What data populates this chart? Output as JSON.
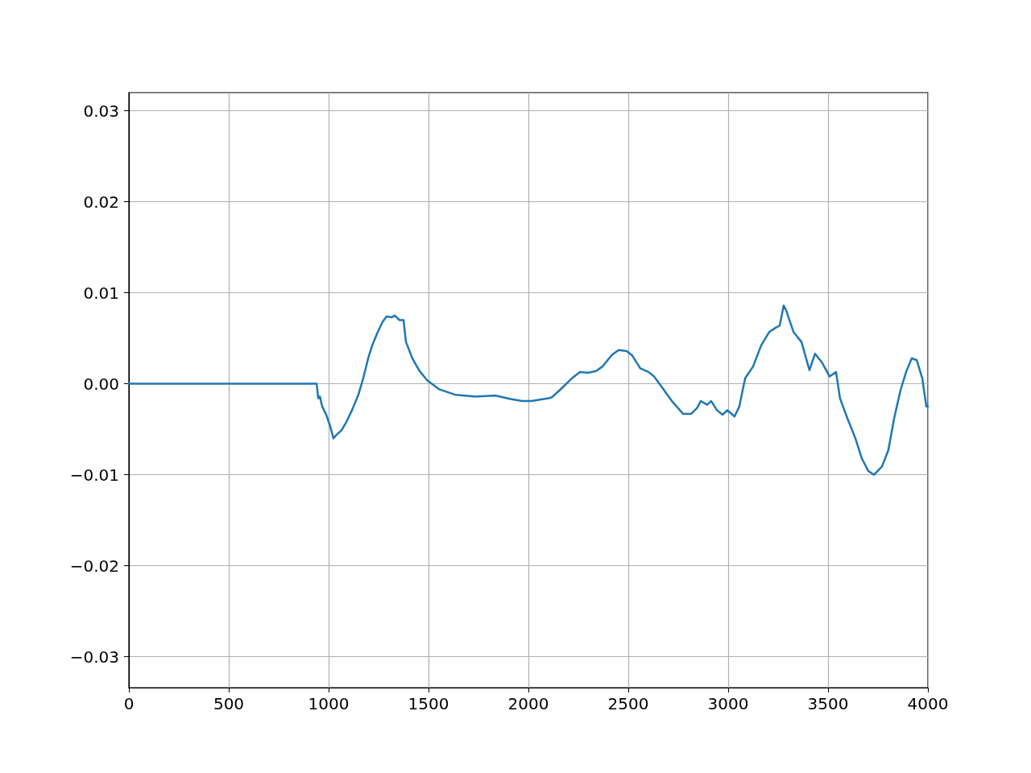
{
  "chart_data": {
    "type": "line",
    "grid": true,
    "marker": "none",
    "line_style": "solid",
    "xlim": [
      0,
      4000
    ],
    "xticks": [
      0,
      500,
      1000,
      1500,
      2000,
      2500,
      3000,
      3500,
      4000
    ],
    "ylim": [
      -0.0334,
      0.032
    ],
    "yticks": [
      {
        "value": -0.03,
        "label": "−0.03"
      },
      {
        "value": -0.02,
        "label": "−0.02"
      },
      {
        "value": -0.01,
        "label": "−0.01"
      },
      {
        "value": 0,
        "label": "0.00"
      },
      {
        "value": 0.01,
        "label": "0.01"
      },
      {
        "value": 0.02,
        "label": "0.02"
      },
      {
        "value": 0.03,
        "label": "0.03"
      }
    ],
    "x": [
      0,
      940,
      948,
      956,
      968,
      988,
      1008,
      1024,
      1040,
      1065,
      1089,
      1117,
      1149,
      1173,
      1198,
      1218,
      1242,
      1270,
      1290,
      1315,
      1331,
      1355,
      1375,
      1387,
      1419,
      1452,
      1492,
      1552,
      1633,
      1734,
      1835,
      1915,
      1968,
      2016,
      2097,
      2117,
      2157,
      2218,
      2258,
      2298,
      2339,
      2371,
      2419,
      2452,
      2492,
      2520,
      2560,
      2601,
      2629,
      2669,
      2722,
      2774,
      2815,
      2843,
      2863,
      2895,
      2915,
      2944,
      2972,
      2996,
      3032,
      3056,
      3085,
      3125,
      3165,
      3206,
      3234,
      3258,
      3278,
      3290,
      3327,
      3367,
      3407,
      3435,
      3468,
      3508,
      3540,
      3560,
      3597,
      3637,
      3669,
      3702,
      3730,
      3770,
      3802,
      3831,
      3863,
      3891,
      3919,
      3944,
      3972,
      3992,
      4000
    ],
    "series": [
      {
        "color": "#1f77b4",
        "values": [
          0,
          0,
          -0.0016,
          -0.0014,
          -0.0025,
          -0.0034,
          -0.0047,
          -0.006,
          -0.0056,
          -0.0051,
          -0.0042,
          -0.0029,
          -0.0012,
          0.0006,
          0.0028,
          0.0042,
          0.0055,
          0.0068,
          0.0074,
          0.0073,
          0.0075,
          0.007,
          0.007,
          0.0046,
          0.0028,
          0.0015,
          0.0004,
          -0.0006,
          -0.0012,
          -0.0014,
          -0.0013,
          -0.0017,
          -0.0019,
          -0.0019,
          -0.0016,
          -0.0015,
          -0.0007,
          0.0006,
          0.0013,
          0.0012,
          0.0014,
          0.0019,
          0.0032,
          0.0037,
          0.0036,
          0.0031,
          0.0017,
          0.0013,
          0.0008,
          -0.0004,
          -0.002,
          -0.0033,
          -0.0033,
          -0.0027,
          -0.0019,
          -0.0023,
          -0.0019,
          -0.0029,
          -0.0034,
          -0.0029,
          -0.0036,
          -0.0025,
          0.0006,
          0.0019,
          0.0042,
          0.0057,
          0.0061,
          0.0064,
          0.0086,
          0.0081,
          0.0057,
          0.0046,
          0.0015,
          0.0033,
          0.0024,
          0.0008,
          0.0013,
          -0.0016,
          -0.0038,
          -0.006,
          -0.0082,
          -0.0096,
          -0.01,
          -0.0091,
          -0.0073,
          -0.0038,
          -0.0007,
          0.0013,
          0.0028,
          0.0026,
          0.0006,
          -0.0025,
          -0.0025
        ]
      }
    ]
  }
}
